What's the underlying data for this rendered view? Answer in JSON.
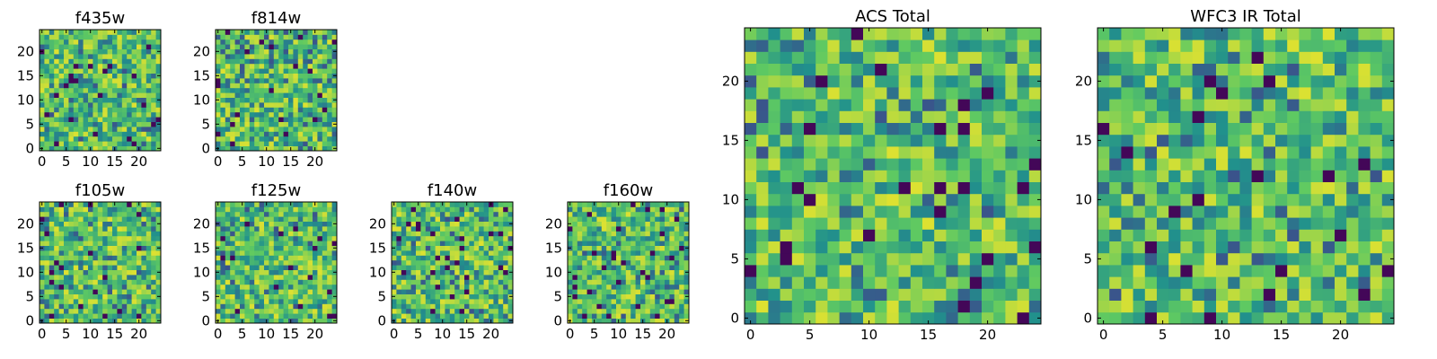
{
  "chart_data": [
    {
      "type": "heatmap",
      "title": "f435w",
      "shape": [
        25,
        25
      ],
      "xticks": [
        0,
        5,
        10,
        15,
        20
      ],
      "yticks": [
        0,
        5,
        10,
        15,
        20
      ],
      "colormap": "viridis",
      "texture_seed": 11
    },
    {
      "type": "heatmap",
      "title": "f814w",
      "shape": [
        25,
        25
      ],
      "xticks": [
        0,
        5,
        10,
        15,
        20
      ],
      "yticks": [
        0,
        5,
        10,
        15,
        20
      ],
      "colormap": "viridis",
      "texture_seed": 23
    },
    {
      "type": "heatmap",
      "title": "f105w",
      "shape": [
        25,
        25
      ],
      "xticks": [
        0,
        5,
        10,
        15,
        20
      ],
      "yticks": [
        0,
        5,
        10,
        15,
        20
      ],
      "colormap": "viridis",
      "texture_seed": 37
    },
    {
      "type": "heatmap",
      "title": "f125w",
      "shape": [
        25,
        25
      ],
      "xticks": [
        0,
        5,
        10,
        15,
        20
      ],
      "yticks": [
        0,
        5,
        10,
        15,
        20
      ],
      "colormap": "viridis",
      "texture_seed": 41
    },
    {
      "type": "heatmap",
      "title": "f140w",
      "shape": [
        25,
        25
      ],
      "xticks": [
        0,
        5,
        10,
        15,
        20
      ],
      "yticks": [
        0,
        5,
        10,
        15,
        20
      ],
      "colormap": "viridis",
      "texture_seed": 53
    },
    {
      "type": "heatmap",
      "title": "f160w",
      "shape": [
        25,
        25
      ],
      "xticks": [
        0,
        5,
        10,
        15,
        20
      ],
      "yticks": [
        0,
        5,
        10,
        15,
        20
      ],
      "colormap": "viridis",
      "texture_seed": 67
    },
    {
      "type": "heatmap",
      "title": "ACS Total",
      "shape": [
        25,
        25
      ],
      "xticks": [
        0,
        5,
        10,
        15,
        20
      ],
      "yticks": [
        0,
        5,
        10,
        15,
        20
      ],
      "colormap": "viridis",
      "texture_seed": 79
    },
    {
      "type": "heatmap",
      "title": "WFC3 IR Total",
      "shape": [
        25,
        25
      ],
      "xticks": [
        0,
        5,
        10,
        15,
        20
      ],
      "yticks": [
        0,
        5,
        10,
        15,
        20
      ],
      "colormap": "viridis",
      "texture_seed": 97
    }
  ]
}
